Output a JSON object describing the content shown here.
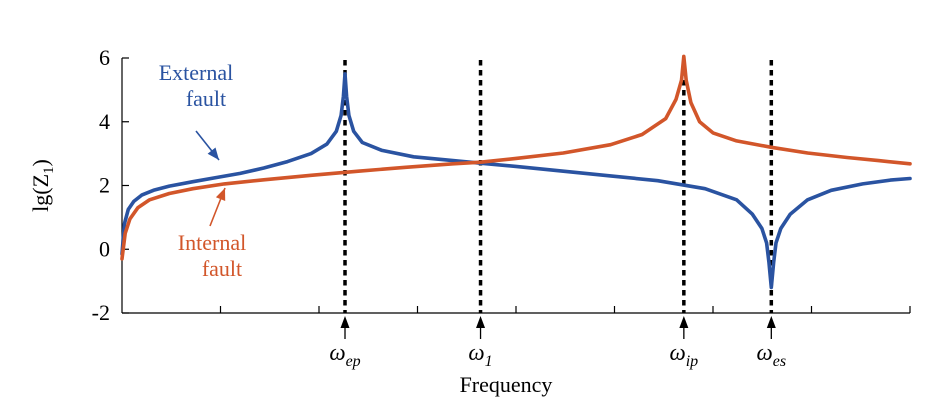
{
  "chart_data": {
    "type": "line",
    "xlabel": "Frequency",
    "ylabel": "lg(Z",
    "ylabel_sub": "1",
    "ylabel_close": ")",
    "ylim": [
      -2,
      6
    ],
    "yticks": [
      {
        "value": -2,
        "label": "-2"
      },
      {
        "value": 0,
        "label": "0"
      },
      {
        "value": 2,
        "label": "2"
      },
      {
        "value": 4,
        "label": "4"
      },
      {
        "value": 6,
        "label": "6"
      }
    ],
    "xlim": [
      0,
      1
    ],
    "xticks": [
      0.125,
      0.25,
      0.375,
      0.5,
      0.625,
      0.75,
      0.875,
      1.0
    ],
    "markers": [
      {
        "x": 0.283,
        "base": "ω",
        "sub": "ep"
      },
      {
        "x": 0.455,
        "base": "ω",
        "sub": "1"
      },
      {
        "x": 0.713,
        "base": "ω",
        "sub": "ip"
      },
      {
        "x": 0.824,
        "base": "ω",
        "sub": "es"
      }
    ],
    "series": [
      {
        "name": "External fault",
        "name_lines": [
          "External",
          "fault"
        ],
        "color": "#2a53a1",
        "points": [
          [
            0.0,
            -0.15
          ],
          [
            0.003,
            0.8
          ],
          [
            0.008,
            1.25
          ],
          [
            0.015,
            1.5
          ],
          [
            0.025,
            1.7
          ],
          [
            0.04,
            1.85
          ],
          [
            0.06,
            1.98
          ],
          [
            0.09,
            2.12
          ],
          [
            0.12,
            2.25
          ],
          [
            0.15,
            2.38
          ],
          [
            0.18,
            2.55
          ],
          [
            0.21,
            2.75
          ],
          [
            0.24,
            3.0
          ],
          [
            0.26,
            3.3
          ],
          [
            0.272,
            3.7
          ],
          [
            0.278,
            4.2
          ],
          [
            0.281,
            4.8
          ],
          [
            0.283,
            5.5
          ],
          [
            0.285,
            4.8
          ],
          [
            0.288,
            4.2
          ],
          [
            0.294,
            3.7
          ],
          [
            0.305,
            3.35
          ],
          [
            0.33,
            3.1
          ],
          [
            0.37,
            2.9
          ],
          [
            0.42,
            2.78
          ],
          [
            0.455,
            2.7
          ],
          [
            0.5,
            2.6
          ],
          [
            0.56,
            2.45
          ],
          [
            0.62,
            2.3
          ],
          [
            0.68,
            2.15
          ],
          [
            0.74,
            1.9
          ],
          [
            0.78,
            1.55
          ],
          [
            0.8,
            1.1
          ],
          [
            0.812,
            0.65
          ],
          [
            0.818,
            0.2
          ],
          [
            0.821,
            -0.4
          ],
          [
            0.824,
            -1.2
          ],
          [
            0.827,
            -0.4
          ],
          [
            0.83,
            0.2
          ],
          [
            0.836,
            0.65
          ],
          [
            0.848,
            1.1
          ],
          [
            0.87,
            1.55
          ],
          [
            0.9,
            1.85
          ],
          [
            0.94,
            2.05
          ],
          [
            0.975,
            2.17
          ],
          [
            1.0,
            2.22
          ]
        ]
      },
      {
        "name": "Internal fault",
        "name_lines": [
          "Internal",
          "fault"
        ],
        "color": "#d2562a",
        "points": [
          [
            0.0,
            -0.3
          ],
          [
            0.004,
            0.5
          ],
          [
            0.01,
            0.95
          ],
          [
            0.02,
            1.3
          ],
          [
            0.035,
            1.55
          ],
          [
            0.06,
            1.75
          ],
          [
            0.09,
            1.9
          ],
          [
            0.13,
            2.05
          ],
          [
            0.18,
            2.18
          ],
          [
            0.24,
            2.32
          ],
          [
            0.3,
            2.45
          ],
          [
            0.36,
            2.57
          ],
          [
            0.42,
            2.68
          ],
          [
            0.455,
            2.73
          ],
          [
            0.5,
            2.85
          ],
          [
            0.56,
            3.02
          ],
          [
            0.62,
            3.28
          ],
          [
            0.66,
            3.6
          ],
          [
            0.69,
            4.1
          ],
          [
            0.703,
            4.7
          ],
          [
            0.71,
            5.3
          ],
          [
            0.713,
            6.05
          ],
          [
            0.716,
            5.3
          ],
          [
            0.722,
            4.6
          ],
          [
            0.733,
            4.0
          ],
          [
            0.75,
            3.65
          ],
          [
            0.78,
            3.4
          ],
          [
            0.824,
            3.2
          ],
          [
            0.87,
            3.02
          ],
          [
            0.92,
            2.88
          ],
          [
            0.96,
            2.78
          ],
          [
            1.0,
            2.68
          ]
        ]
      }
    ],
    "grid": false,
    "legend": "inline labels with arrows"
  }
}
